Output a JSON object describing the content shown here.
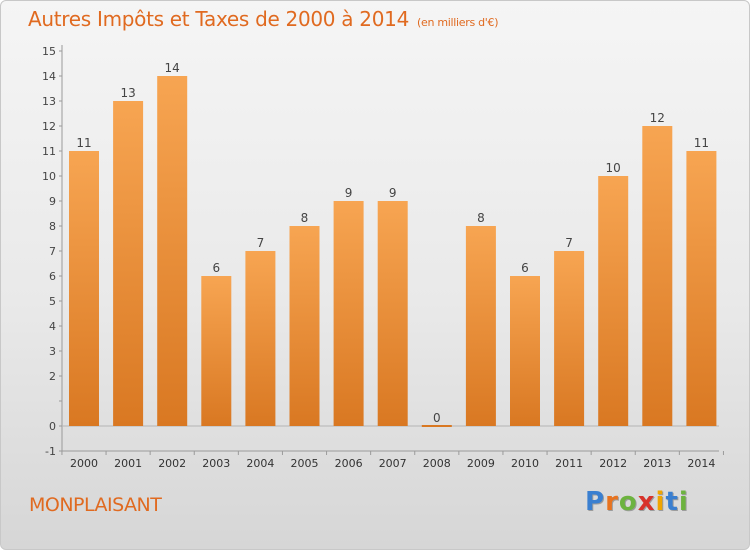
{
  "title": "Autres Impôts et Taxes de 2000 à 2014",
  "unit_note": "(en milliers d'€)",
  "commune": "MONPLAISANT",
  "brand": {
    "letters": [
      "P",
      "r",
      "o",
      "x",
      "i",
      "t",
      "i"
    ],
    "colors": [
      "#3a7fd0",
      "#e8731f",
      "#6db33f",
      "#d8322a",
      "#f0a500",
      "#3a7fd0",
      "#6db33f"
    ]
  },
  "colors": {
    "accent": "#e06a20",
    "bar_top": "#f7a552",
    "bar_bottom": "#d97822"
  },
  "chart_data": {
    "type": "bar",
    "title": "Autres Impôts et Taxes de 2000 à 2014",
    "subtitle": "(en milliers d'€)",
    "categories": [
      "2000",
      "2001",
      "2002",
      "2003",
      "2004",
      "2005",
      "2006",
      "2007",
      "2008",
      "2009",
      "2010",
      "2011",
      "2012",
      "2013",
      "2014"
    ],
    "values": [
      11,
      13,
      14,
      6,
      7,
      8,
      9,
      9,
      0,
      8,
      6,
      7,
      10,
      12,
      11
    ],
    "data_labels": [
      "11",
      "13",
      "14",
      "6",
      "7",
      "8",
      "9",
      "9",
      "0",
      "8",
      "6",
      "7",
      "10",
      "12",
      "11"
    ],
    "y_ticks": [
      -1,
      0,
      1,
      2,
      3,
      4,
      5,
      6,
      7,
      8,
      9,
      10,
      11,
      12,
      13,
      14,
      15
    ],
    "y_tick_labels": [
      "-1",
      "0",
      "",
      "2",
      "3",
      "4",
      "5",
      "6",
      "7",
      "8",
      "9",
      "10",
      "11",
      "12",
      "13",
      "14",
      "15"
    ],
    "ylim": [
      -1,
      15
    ],
    "grid": false,
    "legend": "none"
  }
}
